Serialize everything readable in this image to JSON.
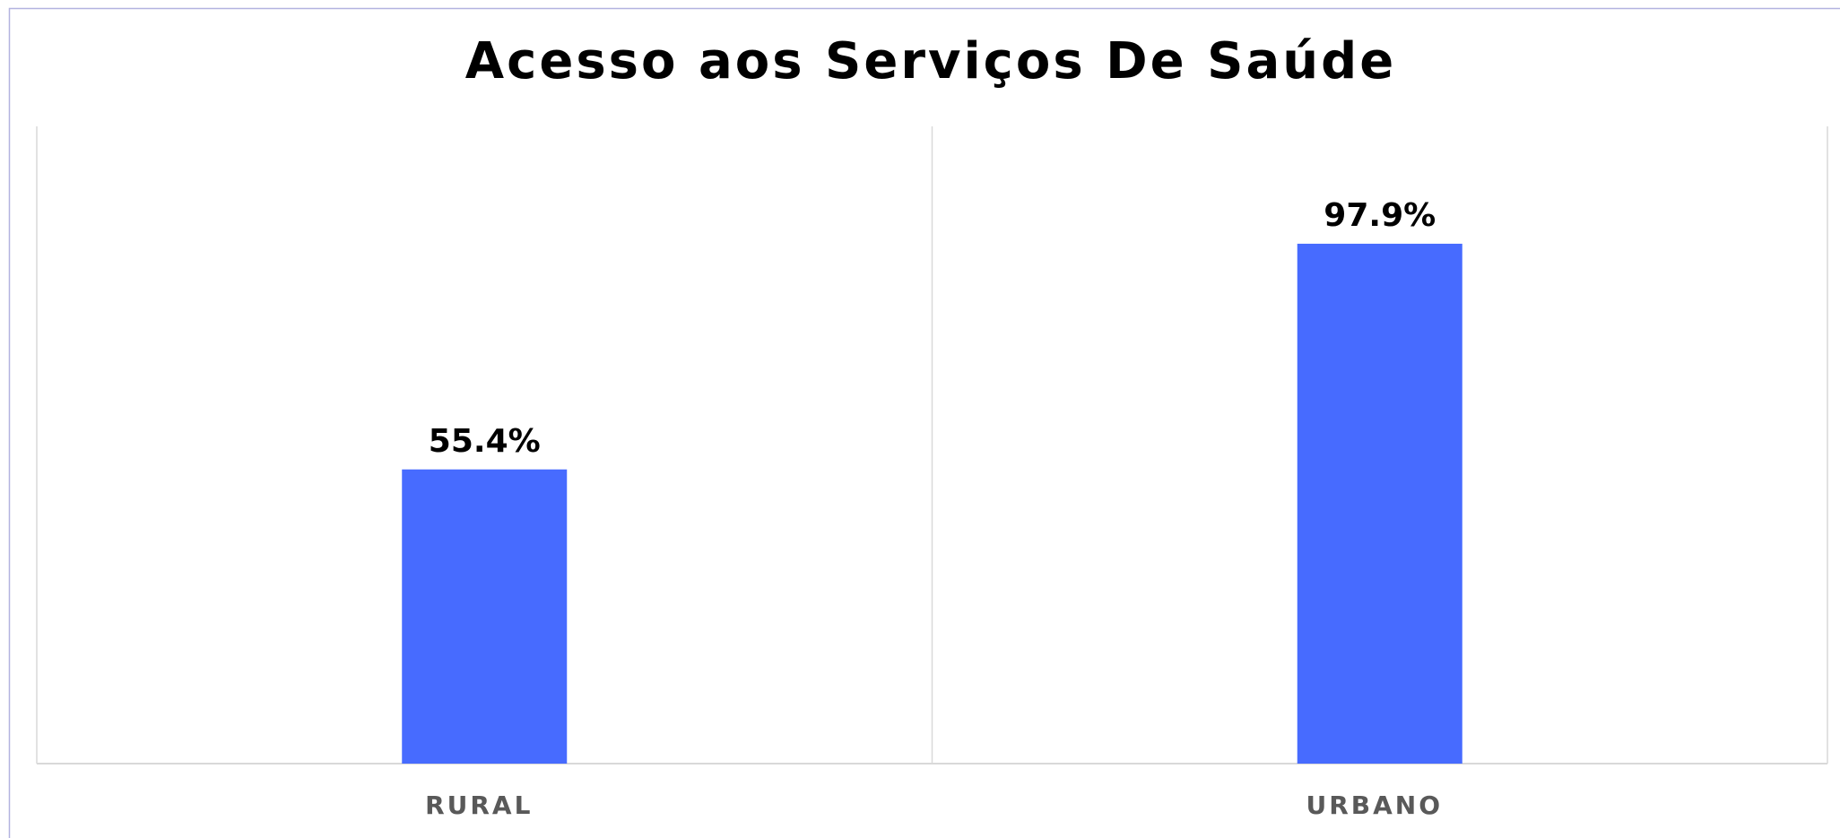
{
  "chart_data": {
    "type": "bar",
    "title": "Acesso aos Serviços De Saúde",
    "categories": [
      "RURAL",
      "URBANO"
    ],
    "values": [
      55.4,
      97.9
    ],
    "value_labels": [
      "55.4%",
      "97.9%"
    ],
    "color": "#476bff",
    "ylim": [
      0,
      120
    ]
  }
}
